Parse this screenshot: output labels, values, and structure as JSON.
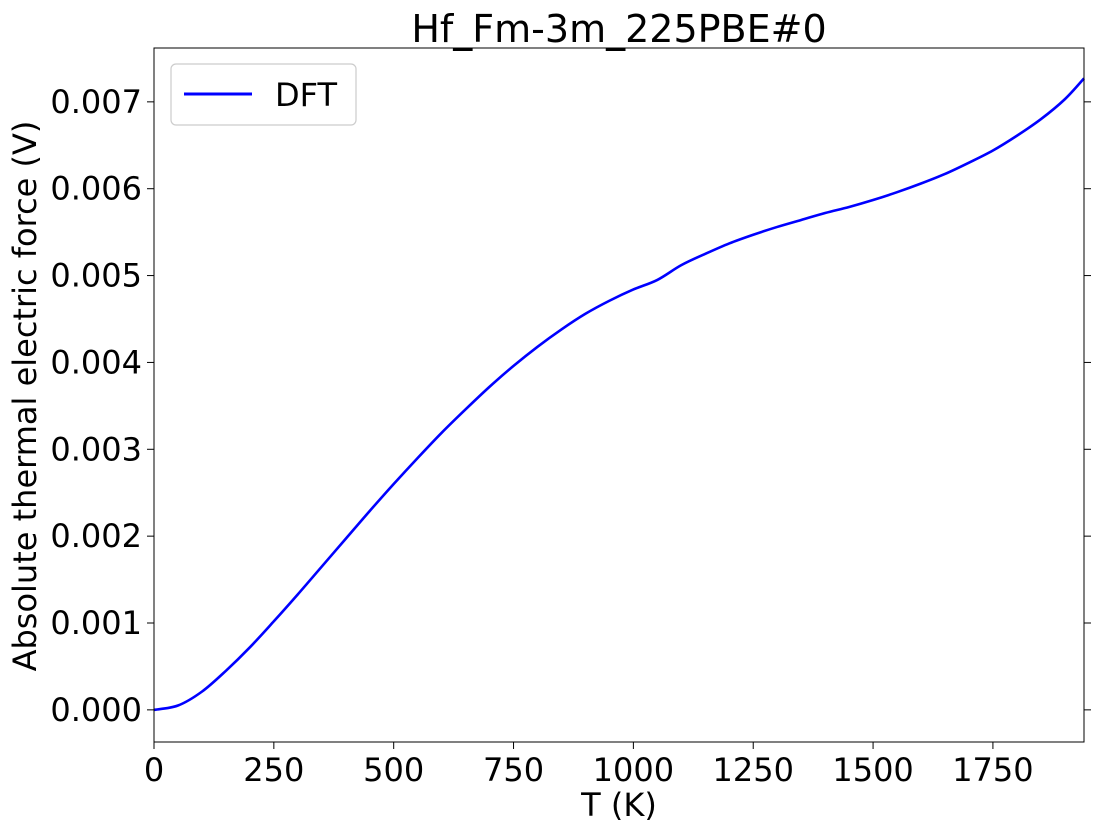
{
  "chart_data": {
    "type": "line",
    "title": "Hf_Fm-3m_225PBE#0",
    "xlabel": "T (K)",
    "ylabel": "Absolute thermal electric force (V)",
    "xlim": [
      0,
      1940
    ],
    "ylim": [
      -0.00037,
      0.00762
    ],
    "xticks": [
      0,
      250,
      500,
      750,
      1000,
      1250,
      1500,
      1750
    ],
    "xtick_labels": [
      "0",
      "250",
      "500",
      "750",
      "1000",
      "1250",
      "1500",
      "1750"
    ],
    "yticks": [
      0.0,
      0.001,
      0.002,
      0.003,
      0.004,
      0.005,
      0.006,
      0.007
    ],
    "ytick_labels": [
      "0.000",
      "0.001",
      "0.002",
      "0.003",
      "0.004",
      "0.005",
      "0.006",
      "0.007"
    ],
    "grid": false,
    "legend_position": "top-left",
    "series": [
      {
        "name": "DFT",
        "color": "#0000ff",
        "x": [
          0,
          50,
          100,
          150,
          200,
          250,
          300,
          350,
          400,
          450,
          500,
          550,
          600,
          650,
          700,
          750,
          800,
          850,
          900,
          950,
          1000,
          1050,
          1100,
          1150,
          1200,
          1250,
          1300,
          1350,
          1400,
          1450,
          1500,
          1550,
          1600,
          1650,
          1700,
          1750,
          1800,
          1850,
          1900,
          1940
        ],
        "y": [
          0.0,
          5e-05,
          0.00021,
          0.00045,
          0.00072,
          0.00102,
          0.00133,
          0.00165,
          0.00197,
          0.00229,
          0.0026,
          0.0029,
          0.00319,
          0.00346,
          0.00372,
          0.00396,
          0.00418,
          0.00438,
          0.00456,
          0.00471,
          0.00484,
          0.00495,
          0.00512,
          0.00525,
          0.00537,
          0.00547,
          0.00556,
          0.00564,
          0.00572,
          0.00579,
          0.00587,
          0.00596,
          0.00606,
          0.00617,
          0.0063,
          0.00644,
          0.00661,
          0.0068,
          0.00703,
          0.00727
        ]
      }
    ]
  }
}
